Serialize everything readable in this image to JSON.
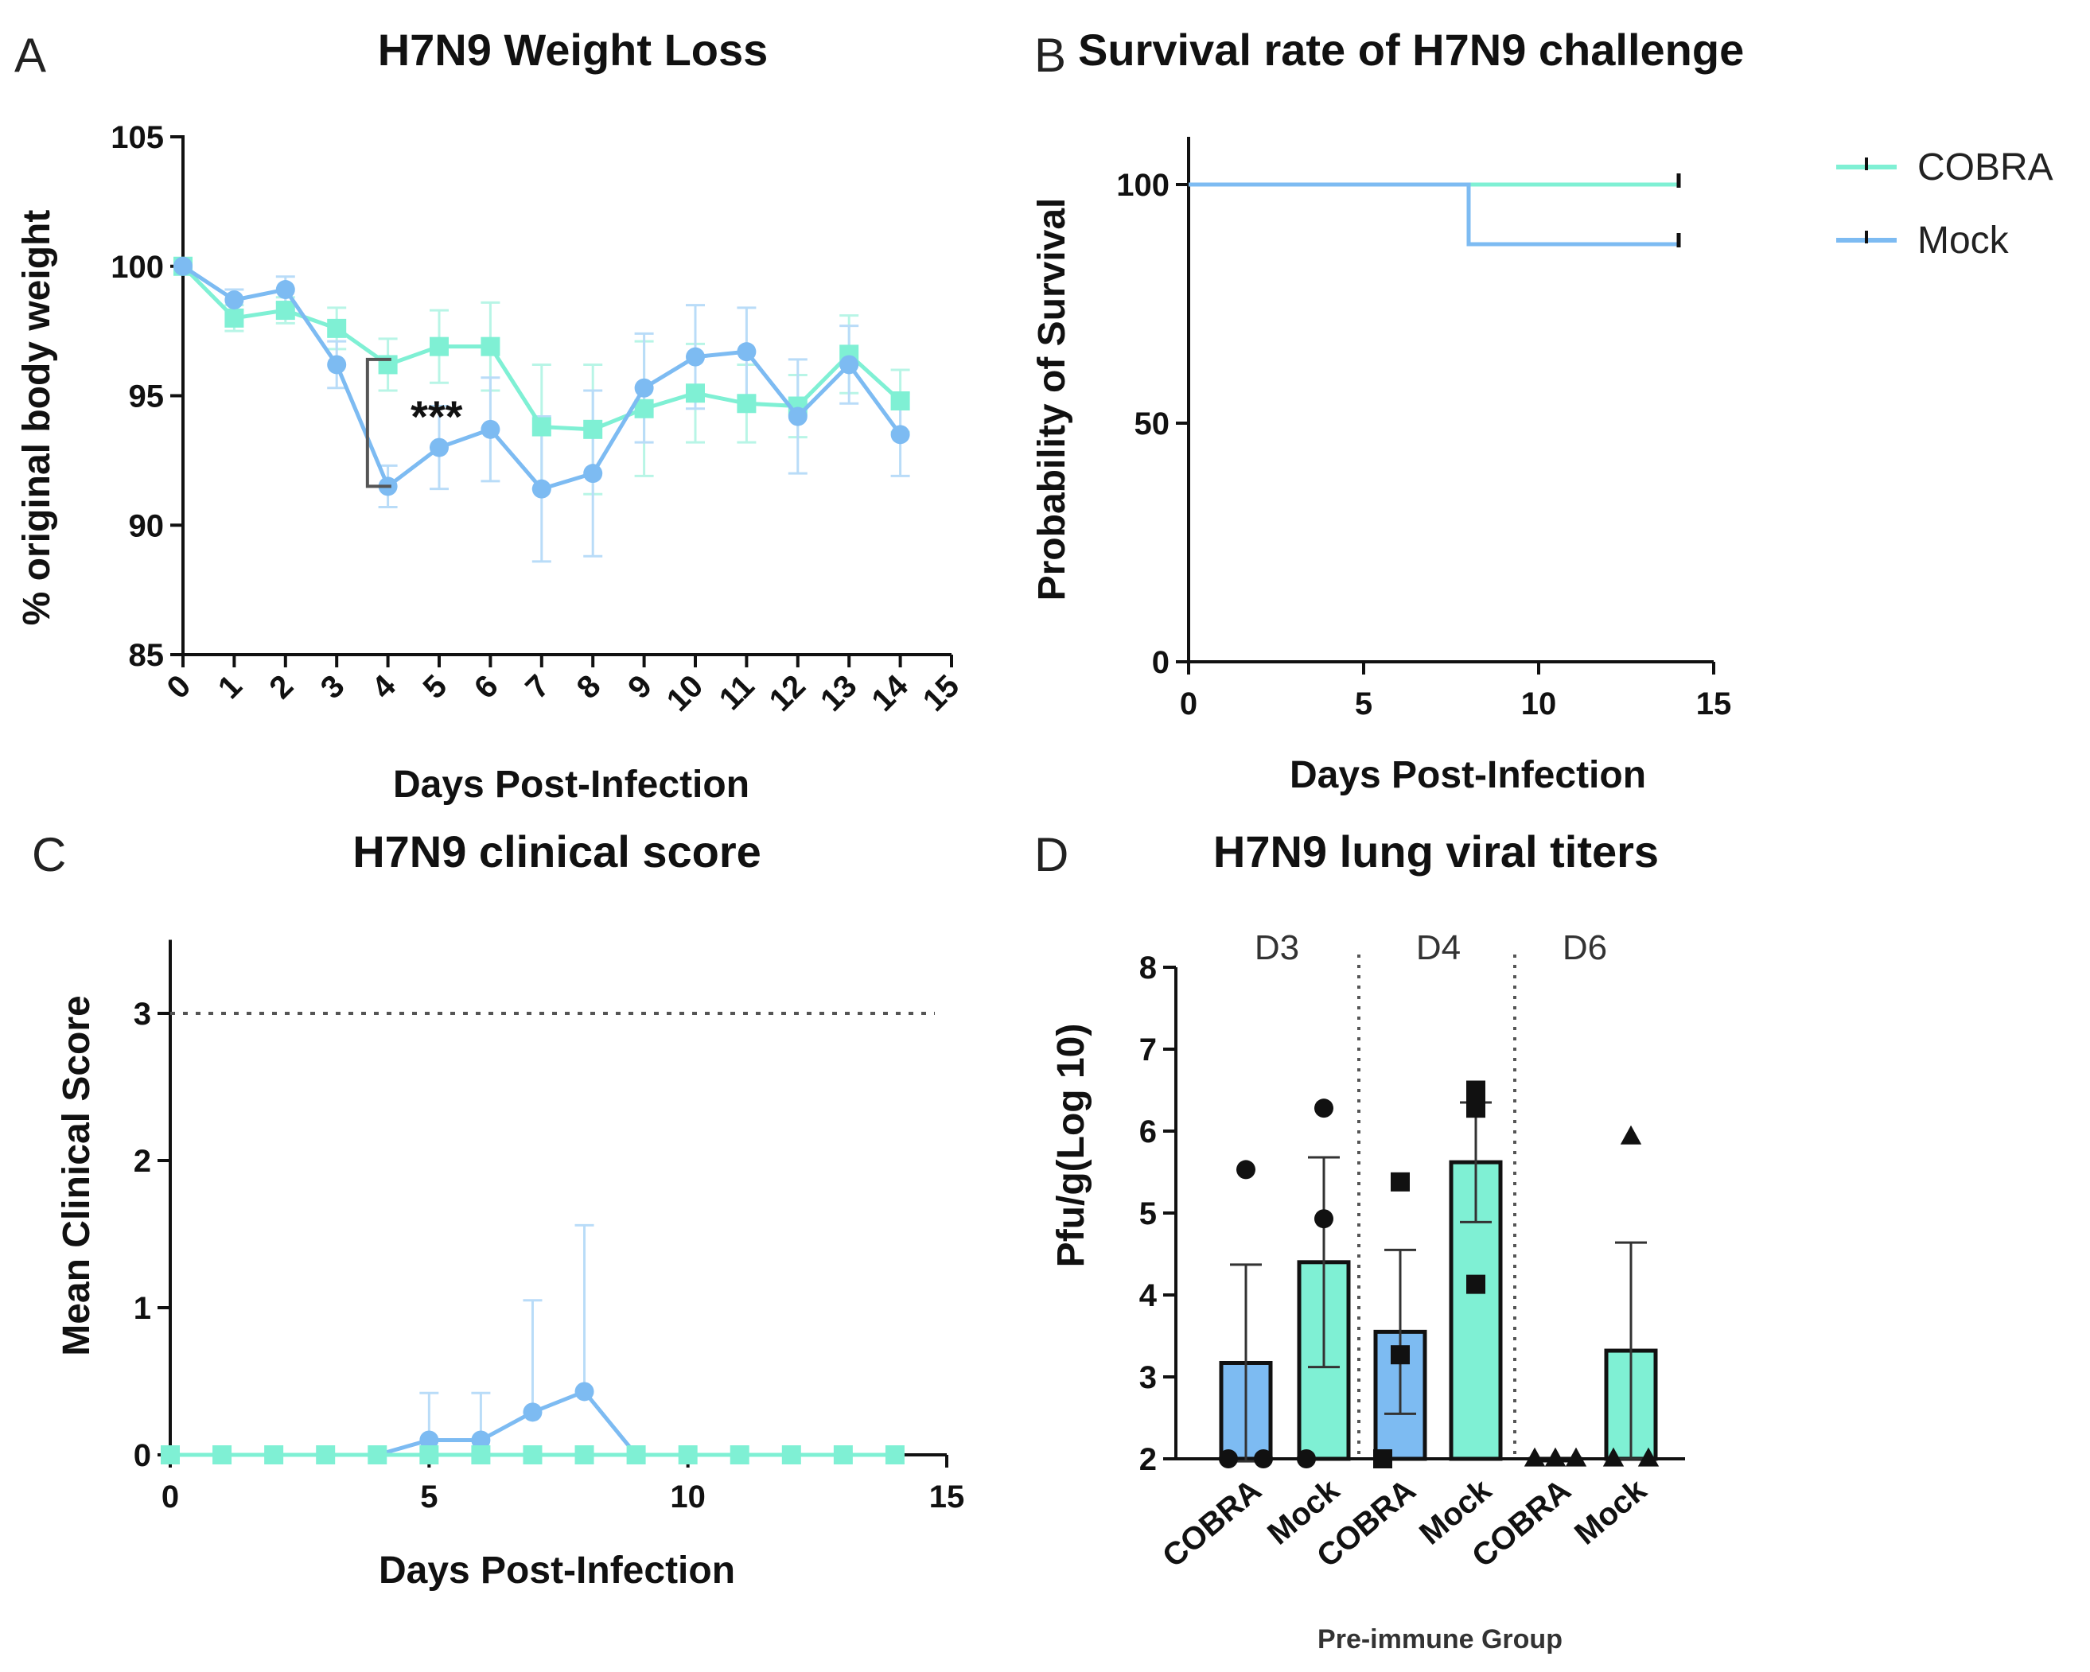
{
  "colors": {
    "cobra": "#7FF0D4",
    "mock": "#7DBBF2",
    "axis": "#111111",
    "errCobra": "#B8F5E6",
    "errMock": "#B9DCF8",
    "bracket": "#555555"
  },
  "panels": {
    "a": "A",
    "b": "B",
    "c": "C",
    "d": "D"
  },
  "chart_data": [
    {
      "id": "A",
      "type": "line",
      "title": "H7N9 Weight Loss",
      "xlabel": "Days Post-Infection",
      "ylabel": "% original body weight",
      "xlim": [
        0,
        15
      ],
      "ylim": [
        85,
        105
      ],
      "xticks": [
        "0",
        "1",
        "2",
        "3",
        "4",
        "5",
        "6",
        "7",
        "8",
        "9",
        "10",
        "11",
        "12",
        "13",
        "14",
        "15"
      ],
      "yticks": [
        "85",
        "90",
        "95",
        "100",
        "105"
      ],
      "annotation": "***",
      "series": [
        {
          "name": "COBRA",
          "marker": "square",
          "x": [
            0,
            1,
            2,
            3,
            4,
            5,
            6,
            7,
            8,
            9,
            10,
            11,
            12,
            13,
            14
          ],
          "y": [
            100,
            98.0,
            98.3,
            97.6,
            96.2,
            96.9,
            96.9,
            93.8,
            93.7,
            94.5,
            95.1,
            94.7,
            94.6,
            96.6,
            94.8
          ],
          "err": [
            0,
            0.5,
            0.5,
            0.8,
            1.0,
            1.4,
            1.7,
            2.4,
            2.5,
            2.6,
            1.9,
            1.5,
            1.2,
            1.5,
            1.2
          ]
        },
        {
          "name": "Mock",
          "marker": "circle",
          "x": [
            0,
            1,
            2,
            3,
            4,
            5,
            6,
            7,
            8,
            9,
            10,
            11,
            12,
            13,
            14
          ],
          "y": [
            100,
            98.7,
            99.1,
            96.2,
            91.5,
            93.0,
            93.7,
            91.4,
            92.0,
            95.3,
            96.5,
            96.7,
            94.2,
            96.2,
            93.5
          ],
          "err": [
            0,
            0.4,
            0.5,
            0.9,
            0.8,
            1.6,
            2.0,
            2.8,
            3.2,
            2.1,
            2.0,
            1.7,
            2.2,
            1.5,
            1.6
          ]
        }
      ]
    },
    {
      "id": "B",
      "type": "line",
      "title": "Survival rate of H7N9 challenge",
      "xlabel": "Days Post-Infection",
      "ylabel": "Probability of Survival",
      "xlim": [
        0,
        15
      ],
      "ylim": [
        0,
        110
      ],
      "xticks": [
        "0",
        "5",
        "10",
        "15"
      ],
      "yticks": [
        "0",
        "50",
        "100"
      ],
      "legend": [
        "COBRA",
        "Mock"
      ],
      "series": [
        {
          "name": "COBRA",
          "x": [
            0,
            14
          ],
          "y": [
            100,
            100
          ]
        },
        {
          "name": "Mock",
          "x": [
            0,
            8,
            8,
            14
          ],
          "y": [
            100,
            100,
            87.5,
            87.5
          ]
        }
      ]
    },
    {
      "id": "C",
      "type": "line",
      "title": "H7N9 clinical score",
      "xlabel": "Days Post-Infection",
      "ylabel": "Mean Clinical  Score",
      "xlim": [
        0,
        15
      ],
      "ylim": [
        0,
        3.5
      ],
      "xticks": [
        "0",
        "5",
        "10",
        "15"
      ],
      "yticks": [
        "0",
        "1",
        "2",
        "3"
      ],
      "threshold": 3,
      "series": [
        {
          "name": "Mock",
          "marker": "circle",
          "x": [
            0,
            1,
            2,
            3,
            4,
            5,
            6,
            7,
            8,
            9,
            10,
            11,
            12,
            13,
            14
          ],
          "y": [
            0,
            0,
            0,
            0,
            0,
            0.1,
            0.1,
            0.29,
            0.43,
            0,
            0,
            0,
            0,
            0,
            0
          ],
          "err": [
            0,
            0,
            0,
            0,
            0,
            0.32,
            0.32,
            0.76,
            1.13,
            0,
            0,
            0,
            0,
            0,
            0
          ]
        },
        {
          "name": "COBRA",
          "marker": "square",
          "x": [
            0,
            1,
            2,
            3,
            4,
            5,
            6,
            7,
            8,
            9,
            10,
            11,
            12,
            13,
            14
          ],
          "y": [
            0,
            0,
            0,
            0,
            0,
            0,
            0,
            0,
            0,
            0,
            0,
            0,
            0,
            0,
            0
          ]
        }
      ]
    },
    {
      "id": "D",
      "type": "bar",
      "title": "H7N9 lung viral titers",
      "xlabel": "Pre-immune Group",
      "ylabel": "Pfu/g(Log 10)",
      "ylim": [
        2,
        8
      ],
      "yticks": [
        "2",
        "3",
        "4",
        "5",
        "6",
        "7",
        "8"
      ],
      "groups": [
        "D3",
        "D4",
        "D6"
      ],
      "categories": [
        "COBRA",
        "Mock",
        "COBRA",
        "Mock",
        "COBRA",
        "Mock"
      ],
      "values": [
        3.17,
        4.4,
        3.55,
        5.62,
        2.0,
        3.32
      ],
      "err": [
        1.2,
        1.28,
        1.0,
        0.73,
        0,
        1.32
      ],
      "bar_groups": [
        "COBRA",
        "Mock",
        "COBRA",
        "Mock",
        "COBRA",
        "Mock"
      ],
      "markers": [
        "circle",
        "circle",
        "square",
        "square",
        "triangle",
        "triangle"
      ],
      "points": [
        [
          2.0,
          2.0,
          5.53
        ],
        [
          2.0,
          4.93,
          6.28
        ],
        [
          2.0,
          3.27,
          5.38
        ],
        [
          4.13,
          6.28,
          6.5
        ],
        [
          2.0,
          2.0,
          2.0
        ],
        [
          2.0,
          2.0,
          5.93
        ]
      ]
    }
  ]
}
